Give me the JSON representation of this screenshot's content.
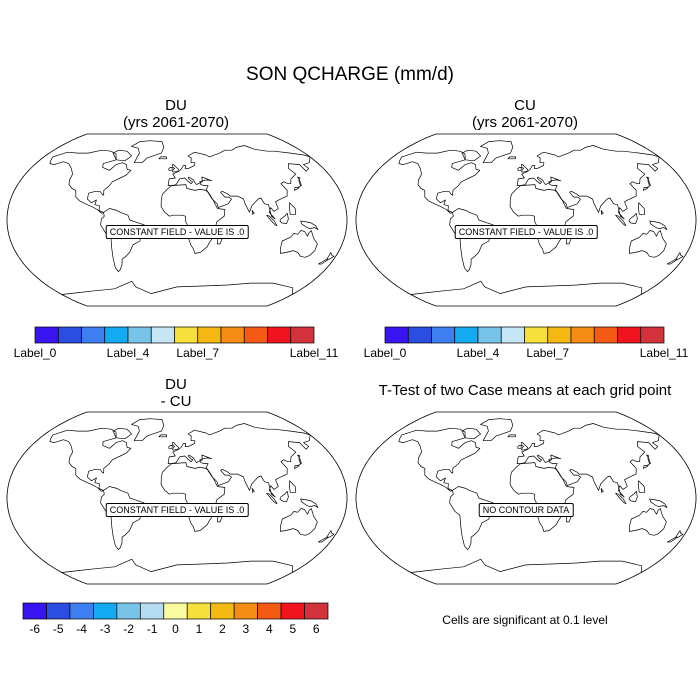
{
  "title": "SON QCHARGE (mm/d)",
  "panels": [
    {
      "id": "du",
      "title_lines": [
        "DU",
        "(yrs 2061-2070)"
      ],
      "annotation": "CONSTANT FIELD - VALUE IS .0"
    },
    {
      "id": "cu",
      "title_lines": [
        "CU",
        "(yrs 2061-2070)"
      ],
      "annotation": "CONSTANT FIELD - VALUE IS .0"
    },
    {
      "id": "diff",
      "title_lines": [
        "DU",
        "- CU"
      ],
      "annotation": "CONSTANT FIELD - VALUE IS .0"
    },
    {
      "id": "ttest",
      "title_lines": [
        "T-Test of two Case means at each grid point"
      ],
      "annotation": "NO CONTOUR DATA"
    }
  ],
  "colorbar_top": {
    "colors": [
      "#3a14f0",
      "#2c4ee0",
      "#3d7ff0",
      "#14aaf2",
      "#78c3e8",
      "#c6e5f7",
      "#f5e03c",
      "#f5b914",
      "#f58c14",
      "#f55a14",
      "#f0141e",
      "#d2323c"
    ],
    "labels": [
      "Label_0",
      "Label_4",
      "Label_7",
      "Label_11"
    ],
    "label_positions": [
      0,
      4,
      7,
      11
    ]
  },
  "colorbar_bottom": {
    "colors": [
      "#3a14f0",
      "#2c4ee0",
      "#3d7ff0",
      "#14aaf2",
      "#78c3e8",
      "#b4dcf0",
      "#fafaa0",
      "#f5e03c",
      "#f5b914",
      "#f58c14",
      "#f55a14",
      "#f0141e",
      "#d2323c"
    ],
    "labels": [
      "-6",
      "-5",
      "-4",
      "-3",
      "-2",
      "-1",
      "0",
      "1",
      "2",
      "3",
      "4",
      "5",
      "6"
    ]
  },
  "significance_note": "Cells are significant at 0.1 level",
  "colors": {
    "outline": "#000000",
    "land_line": "#000000",
    "background": "#ffffff"
  }
}
